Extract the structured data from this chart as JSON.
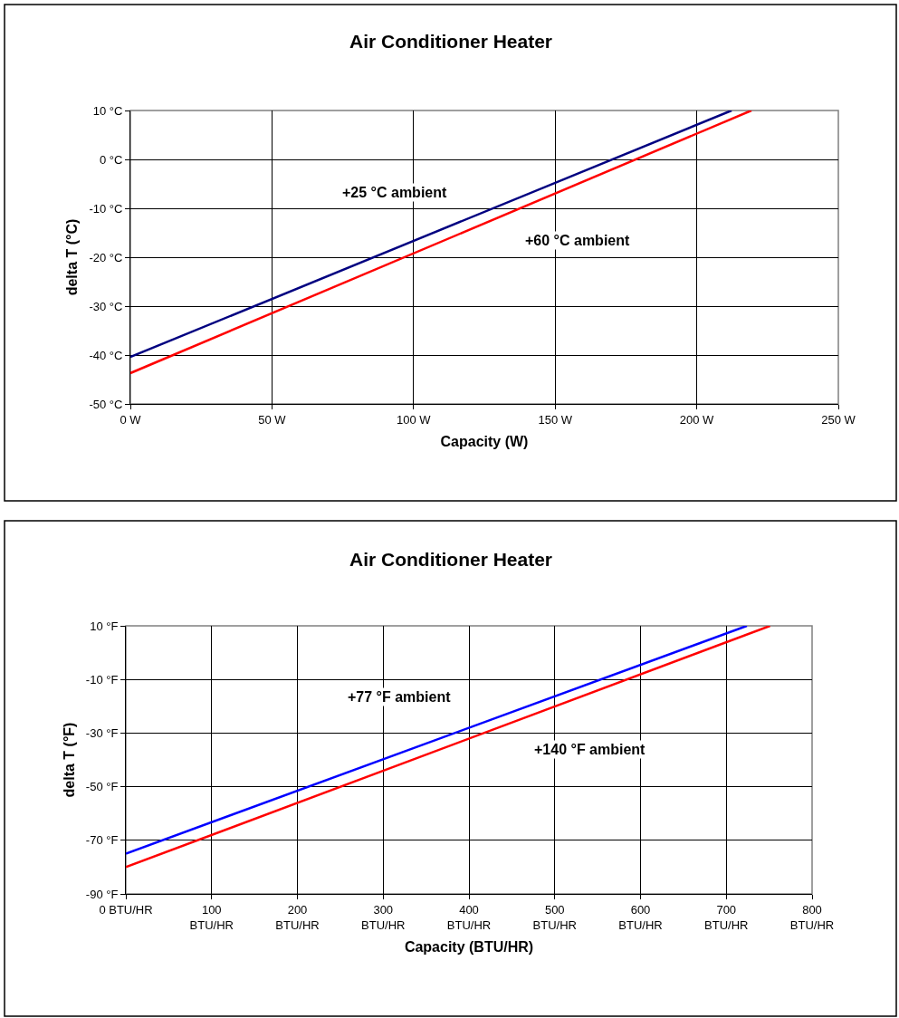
{
  "chart_data": [
    {
      "type": "line",
      "title": "Air Conditioner Heater",
      "xlabel": "Capacity (W)",
      "ylabel": "delta T (°C)",
      "xlim": [
        0,
        250
      ],
      "xticks": [
        {
          "value": 0,
          "label": "0 W"
        },
        {
          "value": 50,
          "label": "50 W"
        },
        {
          "value": 100,
          "label": "100 W"
        },
        {
          "value": 150,
          "label": "150 W"
        },
        {
          "value": 200,
          "label": "200 W"
        },
        {
          "value": 250,
          "label": "250 W"
        }
      ],
      "ylim": [
        -50,
        10
      ],
      "yticks": [
        {
          "value": 10,
          "label": "10 °C"
        },
        {
          "value": 0,
          "label": "0 °C"
        },
        {
          "value": -10,
          "label": "-10 °C"
        },
        {
          "value": -20,
          "label": "-20 °C"
        },
        {
          "value": -30,
          "label": "-30 °C"
        },
        {
          "value": -40,
          "label": "-40 °C"
        },
        {
          "value": -50,
          "label": "-50 °C"
        }
      ],
      "grid": true,
      "legend": false,
      "marker": "none",
      "line_style": "solid",
      "series": [
        {
          "name": "+25 °C ambient",
          "color": "#000080",
          "x": [
            0,
            212.3
          ],
          "values": [
            -40.4,
            10
          ]
        },
        {
          "name": "+60 °C ambient",
          "color": "#ff0000",
          "x": [
            0,
            219.3
          ],
          "values": [
            -43.7,
            10
          ]
        }
      ]
    },
    {
      "type": "line",
      "title": "Air Conditioner Heater",
      "xlabel": "Capacity (BTU/HR)",
      "ylabel": "delta T (°F)",
      "xlim": [
        0,
        800
      ],
      "xticks": [
        {
          "value": 0,
          "label": "0 BTU/HR"
        },
        {
          "value": 100,
          "label": "100\nBTU/HR"
        },
        {
          "value": 200,
          "label": "200\nBTU/HR"
        },
        {
          "value": 300,
          "label": "300\nBTU/HR"
        },
        {
          "value": 400,
          "label": "400\nBTU/HR"
        },
        {
          "value": 500,
          "label": "500\nBTU/HR"
        },
        {
          "value": 600,
          "label": "600\nBTU/HR"
        },
        {
          "value": 700,
          "label": "700\nBTU/HR"
        },
        {
          "value": 800,
          "label": "800\nBTU/HR"
        }
      ],
      "ylim": [
        -90,
        10
      ],
      "yticks": [
        {
          "value": 10,
          "label": "10 °F"
        },
        {
          "value": -10,
          "label": "-10 °F"
        },
        {
          "value": -30,
          "label": "-30 °F"
        },
        {
          "value": -50,
          "label": "-50 °F"
        },
        {
          "value": -70,
          "label": "-70 °F"
        },
        {
          "value": -90,
          "label": "-90 °F"
        }
      ],
      "grid": true,
      "legend": false,
      "marker": "none",
      "line_style": "solid",
      "series": [
        {
          "name": "+77 °F ambient",
          "color": "#0000ff",
          "x": [
            0,
            724
          ],
          "values": [
            -75,
            10
          ]
        },
        {
          "name": "+140 °F ambient",
          "color": "#ff0000",
          "x": [
            0,
            751
          ],
          "values": [
            -80,
            10
          ]
        }
      ]
    }
  ]
}
